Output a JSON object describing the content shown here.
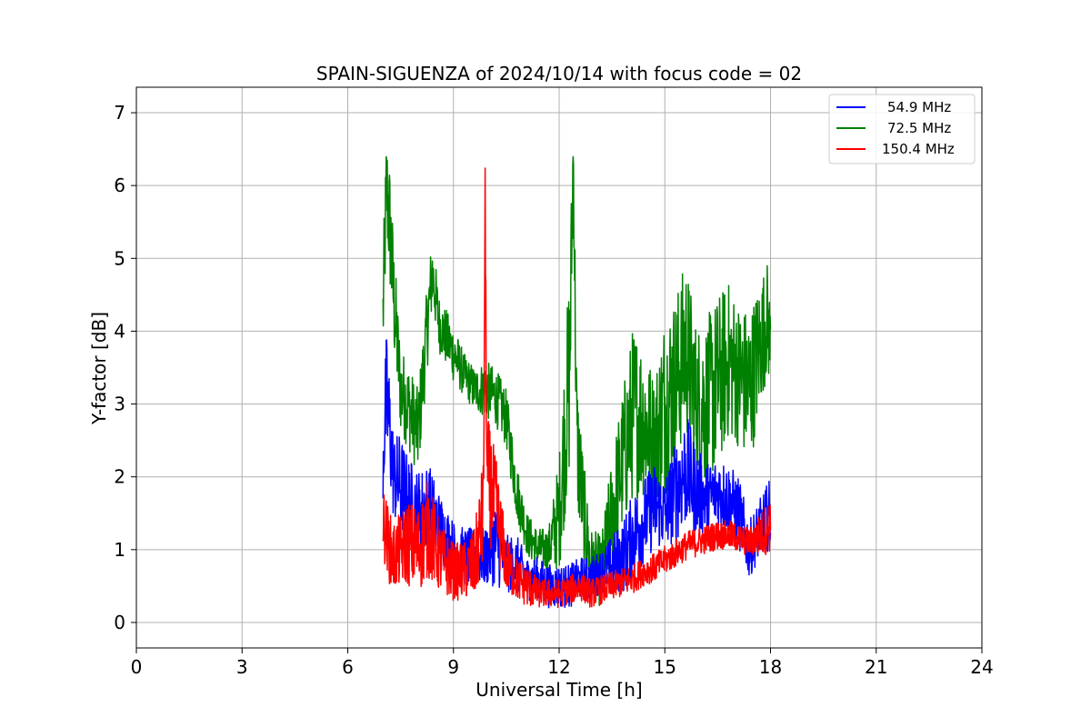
{
  "chart_data": {
    "type": "line",
    "title": "SPAIN-SIGUENZA of 2024/10/14 with focus code = 02",
    "xlabel": "Universal Time [h]",
    "ylabel": "Y-factor [dB]",
    "xlim": [
      0,
      24
    ],
    "ylim": [
      -0.35,
      7.35
    ],
    "xticks": [
      0,
      3,
      6,
      9,
      12,
      15,
      18,
      21,
      24
    ],
    "yticks": [
      0,
      1,
      2,
      3,
      4,
      5,
      6,
      7
    ],
    "grid": true,
    "legend_position": "top-right",
    "series": [
      {
        "name": "54.9 MHz",
        "color": "#0000ff",
        "x": [
          7.0,
          7.1,
          7.2,
          7.3,
          7.5,
          7.7,
          8.0,
          8.3,
          8.6,
          9.0,
          9.3,
          9.6,
          9.9,
          10.2,
          10.5,
          10.8,
          11.1,
          11.4,
          11.7,
          12.0,
          12.3,
          12.6,
          12.9,
          13.2,
          13.5,
          13.8,
          14.1,
          14.4,
          14.7,
          15.0,
          15.3,
          15.6,
          15.9,
          16.2,
          16.5,
          16.8,
          17.1,
          17.4,
          17.7,
          18.0
        ],
        "y": [
          2.3,
          3.1,
          2.6,
          2.0,
          1.9,
          1.7,
          1.5,
          1.6,
          1.3,
          1.0,
          0.9,
          0.9,
          0.9,
          1.1,
          0.8,
          0.8,
          0.6,
          0.6,
          0.5,
          0.5,
          0.5,
          0.6,
          0.6,
          0.7,
          0.8,
          0.9,
          1.2,
          1.4,
          1.6,
          1.5,
          1.8,
          2.1,
          1.8,
          1.7,
          1.8,
          1.7,
          1.5,
          1.0,
          1.3,
          1.5
        ],
        "envelope": [
          0.7,
          0.9,
          0.8,
          0.6,
          0.7,
          0.6,
          0.6,
          0.6,
          0.5,
          0.4,
          0.4,
          0.4,
          0.4,
          0.6,
          0.4,
          0.4,
          0.3,
          0.3,
          0.3,
          0.3,
          0.3,
          0.3,
          0.3,
          0.3,
          0.4,
          0.5,
          0.6,
          0.6,
          0.6,
          0.5,
          0.7,
          0.8,
          0.6,
          0.5,
          0.5,
          0.5,
          0.5,
          0.4,
          0.4,
          0.5
        ]
      },
      {
        "name": "72.5 MHz",
        "color": "#008000",
        "x": [
          7.0,
          7.1,
          7.2,
          7.3,
          7.5,
          7.7,
          8.0,
          8.3,
          8.4,
          8.6,
          9.0,
          9.3,
          9.6,
          9.9,
          10.2,
          10.5,
          10.8,
          11.1,
          11.4,
          11.7,
          12.0,
          12.3,
          12.4,
          12.5,
          12.7,
          12.9,
          13.2,
          13.5,
          13.8,
          14.1,
          14.4,
          14.7,
          15.0,
          15.3,
          15.6,
          15.9,
          16.2,
          16.5,
          16.8,
          17.1,
          17.4,
          17.7,
          17.9,
          18.0
        ],
        "y": [
          4.2,
          6.0,
          5.4,
          4.5,
          3.2,
          3.0,
          2.6,
          4.3,
          4.8,
          4.1,
          3.7,
          3.4,
          3.2,
          3.2,
          3.1,
          2.8,
          1.8,
          1.2,
          1.0,
          1.0,
          1.5,
          3.5,
          6.5,
          2.5,
          1.5,
          0.8,
          0.7,
          1.5,
          2.2,
          2.9,
          2.8,
          2.4,
          3.0,
          3.3,
          3.8,
          3.0,
          3.0,
          3.3,
          3.6,
          3.4,
          3.2,
          3.8,
          4.2,
          3.8
        ],
        "envelope": [
          0.8,
          0.8,
          0.9,
          0.8,
          0.6,
          0.6,
          0.6,
          0.6,
          0.5,
          0.4,
          0.4,
          0.3,
          0.3,
          0.4,
          0.4,
          0.4,
          0.4,
          0.3,
          0.3,
          0.3,
          0.8,
          1.5,
          0.6,
          1.0,
          0.7,
          0.5,
          0.5,
          0.8,
          1.0,
          1.2,
          1.1,
          1.0,
          1.3,
          1.2,
          1.2,
          1.1,
          1.2,
          1.2,
          1.1,
          1.0,
          1.1,
          0.9,
          0.8,
          0.6
        ]
      },
      {
        "name": "150.4 MHz",
        "color": "#ff0000",
        "x": [
          7.0,
          7.1,
          7.2,
          7.3,
          7.5,
          7.7,
          8.0,
          8.3,
          8.6,
          9.0,
          9.3,
          9.6,
          9.85,
          9.9,
          9.95,
          10.2,
          10.5,
          10.8,
          11.1,
          11.4,
          11.7,
          12.0,
          12.3,
          12.6,
          12.9,
          13.2,
          13.5,
          13.8,
          14.1,
          14.4,
          14.7,
          15.0,
          15.3,
          15.6,
          15.9,
          16.2,
          16.5,
          16.8,
          17.1,
          17.4,
          17.7,
          18.0
        ],
        "y": [
          1.4,
          1.2,
          1.0,
          0.9,
          1.0,
          1.1,
          1.0,
          1.3,
          0.9,
          0.7,
          0.7,
          0.8,
          1.5,
          5.8,
          2.0,
          1.6,
          0.8,
          0.6,
          0.5,
          0.4,
          0.4,
          0.4,
          0.45,
          0.5,
          0.4,
          0.45,
          0.5,
          0.55,
          0.6,
          0.7,
          0.75,
          0.85,
          0.95,
          1.05,
          1.1,
          1.15,
          1.2,
          1.2,
          1.15,
          1.1,
          1.2,
          1.35
        ],
        "envelope": [
          0.5,
          0.5,
          0.5,
          0.5,
          0.5,
          0.6,
          0.6,
          0.7,
          0.5,
          0.4,
          0.4,
          0.5,
          0.8,
          0.5,
          0.9,
          0.7,
          0.4,
          0.3,
          0.3,
          0.2,
          0.2,
          0.2,
          0.2,
          0.2,
          0.2,
          0.2,
          0.2,
          0.2,
          0.2,
          0.2,
          0.2,
          0.2,
          0.2,
          0.2,
          0.2,
          0.2,
          0.2,
          0.2,
          0.2,
          0.2,
          0.3,
          0.4
        ]
      }
    ]
  }
}
